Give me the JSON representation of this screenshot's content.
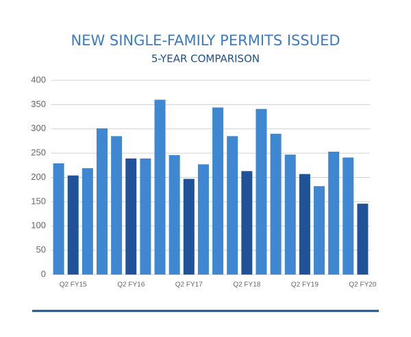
{
  "chart_data": {
    "type": "bar",
    "title": "NEW SINGLE-FAMILY PERMITS ISSUED",
    "subtitle": "5-YEAR COMPARISON",
    "categories": [
      null,
      "Q2 FY15",
      null,
      null,
      null,
      "Q2 FY16",
      null,
      null,
      null,
      "Q2 FY17",
      null,
      null,
      null,
      "Q2 FY18",
      null,
      null,
      null,
      "Q2 FY19",
      null,
      null,
      null,
      "Q2 FY20"
    ],
    "values": [
      229,
      204,
      219,
      301,
      285,
      239,
      239,
      360,
      246,
      197,
      227,
      344,
      285,
      213,
      341,
      290,
      247,
      207,
      182,
      253,
      241,
      146
    ],
    "colors": [
      "#3f87d0",
      "#1f5299",
      "#3f87d0",
      "#3f87d0",
      "#3f87d0",
      "#1f5299",
      "#3f87d0",
      "#3f87d0",
      "#3f87d0",
      "#1f5299",
      "#3f87d0",
      "#3f87d0",
      "#3f87d0",
      "#1f5299",
      "#3f87d0",
      "#3f87d0",
      "#3f87d0",
      "#1f5299",
      "#3f87d0",
      "#3f87d0",
      "#3f87d0",
      "#1f5299"
    ],
    "ylim": [
      0,
      400
    ],
    "yticks": [
      0,
      50,
      100,
      150,
      200,
      250,
      300,
      350,
      400
    ],
    "grid": true
  }
}
